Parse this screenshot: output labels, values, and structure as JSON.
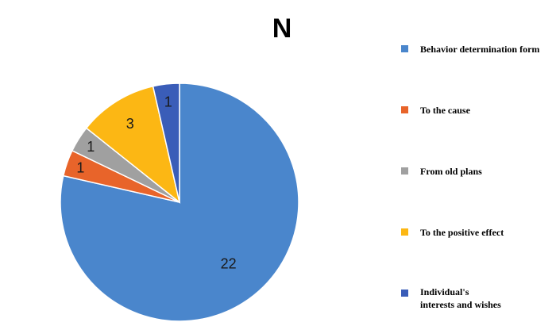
{
  "chart_data": {
    "type": "pie",
    "title": "N",
    "categories": [
      "Behavior determination form",
      "To the cause",
      "From old plans",
      "To the positive effect",
      "Individual's interests and wishes"
    ],
    "legend_lines": [
      [
        "Behavior determination form"
      ],
      [
        "To the cause"
      ],
      [
        "From old plans"
      ],
      [
        "To the positive effect"
      ],
      [
        "Individual's",
        "interests and wishes"
      ]
    ],
    "values": [
      22,
      1,
      1,
      3,
      1
    ],
    "colors": [
      "#4A86CC",
      "#E8642A",
      "#A0A0A0",
      "#FCB714",
      "#3A5DB8"
    ],
    "legend_position": "right"
  }
}
